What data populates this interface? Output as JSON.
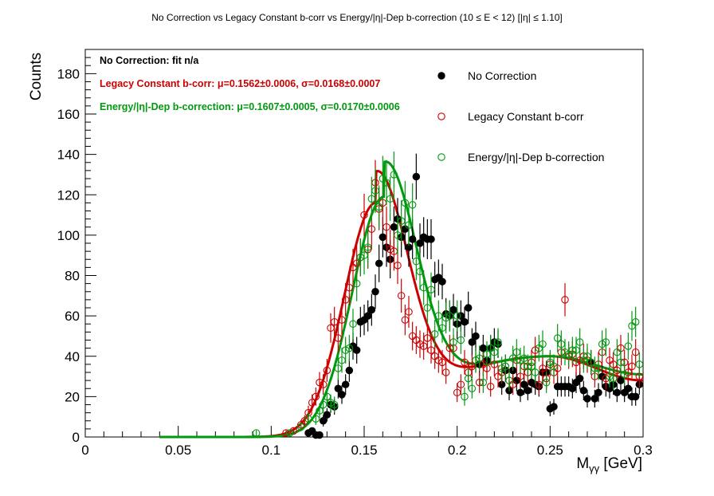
{
  "chart_data": {
    "type": "scatter",
    "title": "No Correction vs Legacy Constant b-corr vs Energy/|η|-Dep b-correction   (10 ≤ E < 12)   [|η| ≤ 1.10]",
    "xlabel": "Mγγ [GeV]",
    "xlabel_main": "M",
    "xlabel_sub": "γγ",
    "xlabel_unit": " [GeV]",
    "ylabel": "Counts",
    "xlim": [
      0,
      0.3
    ],
    "ylim": [
      0,
      192
    ],
    "xticks": [
      0,
      0.05,
      0.1,
      0.15,
      0.2,
      0.25,
      0.3
    ],
    "xtick_labels": [
      "0",
      "0.05",
      "0.1",
      "0.15",
      "0.2",
      "0.25",
      "0.3"
    ],
    "yticks": [
      0,
      20,
      40,
      60,
      80,
      100,
      120,
      140,
      160,
      180
    ],
    "ytick_labels": [
      "0",
      "20",
      "40",
      "60",
      "80",
      "100",
      "120",
      "140",
      "160",
      "180"
    ],
    "grid": false,
    "legend_position": "top-right",
    "annotations": [
      {
        "text": "No Correction: fit n/a",
        "color": "#000000"
      },
      {
        "text": "Legacy Constant b-corr: μ=0.1562±0.0006, σ=0.0168±0.0007",
        "color": "#cc0000"
      },
      {
        "text": "Energy/|η|-Dep b-correction: μ=0.1607±0.0005, σ=0.0170±0.0006",
        "color": "#00990f"
      }
    ],
    "series": [
      {
        "name": "No Correction",
        "color": "#000000",
        "marker": "filled-circle",
        "x": [
          0.12,
          0.122,
          0.124,
          0.126,
          0.128,
          0.13,
          0.132,
          0.134,
          0.136,
          0.138,
          0.14,
          0.142,
          0.144,
          0.146,
          0.148,
          0.15,
          0.152,
          0.154,
          0.156,
          0.158,
          0.16,
          0.162,
          0.164,
          0.166,
          0.168,
          0.17,
          0.172,
          0.174,
          0.176,
          0.178,
          0.18,
          0.182,
          0.184,
          0.186,
          0.188,
          0.19,
          0.192,
          0.194,
          0.196,
          0.198,
          0.2,
          0.202,
          0.204,
          0.206,
          0.208,
          0.21,
          0.212,
          0.214,
          0.216,
          0.218,
          0.22,
          0.222,
          0.224,
          0.226,
          0.228,
          0.23,
          0.232,
          0.234,
          0.236,
          0.238,
          0.24,
          0.242,
          0.244,
          0.246,
          0.248,
          0.25,
          0.252,
          0.254,
          0.256,
          0.258,
          0.26,
          0.262,
          0.264,
          0.266,
          0.268,
          0.27,
          0.272,
          0.274,
          0.276,
          0.278,
          0.28,
          0.282,
          0.284,
          0.286,
          0.288,
          0.29,
          0.292,
          0.294,
          0.296,
          0.298
        ],
        "y": [
          2,
          3,
          1,
          1,
          8,
          11,
          16,
          15,
          24,
          21,
          26,
          33,
          45,
          43,
          57,
          58,
          60,
          63,
          72,
          86,
          99,
          94,
          88,
          104,
          108,
          99,
          103,
          94,
          98,
          129,
          96,
          99,
          98,
          98,
          78,
          79,
          77,
          61,
          60,
          63,
          56,
          60,
          57,
          64,
          47,
          50,
          36,
          44,
          38,
          44,
          47,
          46,
          26,
          33,
          23,
          33,
          28,
          22,
          26,
          23,
          27,
          26,
          25,
          32,
          32,
          14,
          15,
          25,
          25,
          25,
          25,
          24,
          27,
          29,
          23,
          19,
          37,
          19,
          22,
          30,
          25,
          24,
          26,
          22,
          28,
          22,
          24,
          20,
          20,
          26
        ],
        "yerr": [
          1.4,
          1.7,
          1,
          1,
          2.8,
          3.3,
          4,
          3.9,
          4.9,
          4.6,
          5.1,
          5.7,
          6.7,
          6.6,
          7.5,
          7.6,
          7.7,
          7.9,
          8.5,
          9.3,
          10,
          9.7,
          9.4,
          10.2,
          10.4,
          9.9,
          10.1,
          9.7,
          9.9,
          11.4,
          9.8,
          9.9,
          9.9,
          9.9,
          8.8,
          8.9,
          8.8,
          7.8,
          7.7,
          7.9,
          7.5,
          7.7,
          7.5,
          8,
          6.9,
          7.1,
          6,
          6.6,
          6.2,
          6.6,
          6.9,
          6.8,
          5.1,
          5.7,
          4.8,
          5.7,
          5.3,
          4.7,
          5.1,
          4.8,
          5.2,
          5.1,
          5,
          5.7,
          5.7,
          3.7,
          3.9,
          5,
          5,
          5,
          5,
          4.9,
          5.2,
          5.4,
          4.8,
          4.4,
          6.1,
          4.4,
          4.7,
          5.5,
          5,
          4.9,
          5.1,
          4.7,
          5.3,
          4.7,
          4.9,
          4.5,
          4.5,
          5.1
        ]
      },
      {
        "name": "Legacy Constant b-corr",
        "color": "#cc0000",
        "marker": "open-circle",
        "x": [
          0.108,
          0.112,
          0.116,
          0.118,
          0.12,
          0.122,
          0.124,
          0.126,
          0.128,
          0.13,
          0.132,
          0.134,
          0.136,
          0.138,
          0.14,
          0.142,
          0.144,
          0.146,
          0.148,
          0.15,
          0.152,
          0.154,
          0.156,
          0.158,
          0.16,
          0.162,
          0.164,
          0.166,
          0.168,
          0.17,
          0.172,
          0.174,
          0.176,
          0.178,
          0.18,
          0.182,
          0.184,
          0.186,
          0.188,
          0.19,
          0.192,
          0.194,
          0.196,
          0.198,
          0.2,
          0.202,
          0.204,
          0.206,
          0.208,
          0.21,
          0.212,
          0.214,
          0.216,
          0.218,
          0.22,
          0.222,
          0.224,
          0.226,
          0.228,
          0.23,
          0.232,
          0.234,
          0.236,
          0.238,
          0.24,
          0.242,
          0.244,
          0.246,
          0.248,
          0.25,
          0.252,
          0.254,
          0.256,
          0.258,
          0.26,
          0.262,
          0.264,
          0.266,
          0.268,
          0.27,
          0.272,
          0.274,
          0.276,
          0.278,
          0.28,
          0.282,
          0.284,
          0.286,
          0.288,
          0.29,
          0.292,
          0.294,
          0.296,
          0.298
        ],
        "y": [
          2,
          3,
          6,
          8,
          12,
          17,
          20,
          27,
          26,
          33,
          54,
          57,
          49,
          58,
          68,
          74,
          84,
          86,
          89,
          110,
          93,
          103,
          126,
          113,
          116,
          104,
          93,
          92,
          85,
          70,
          58,
          62,
          50,
          48,
          46,
          45,
          49,
          43,
          40,
          38,
          37,
          32,
          44,
          44,
          22,
          26,
          37,
          32,
          35,
          38,
          27,
          36,
          34,
          25,
          36,
          30,
          32,
          35,
          28,
          26,
          38,
          30,
          35,
          32,
          37,
          43,
          26,
          34,
          29,
          36,
          32,
          34,
          42,
          68,
          40,
          41,
          37,
          38,
          40,
          38,
          37,
          30,
          36,
          42,
          29,
          38,
          36,
          33,
          44,
          37,
          32,
          35,
          42,
          30
        ],
        "yerr": [
          1.4,
          1.7,
          2.4,
          2.8,
          3.5,
          4.1,
          4.5,
          5.2,
          5.1,
          5.7,
          7.3,
          7.5,
          7,
          7.6,
          8.2,
          8.6,
          9.2,
          9.3,
          9.4,
          10.5,
          9.6,
          10.1,
          11.2,
          10.6,
          10.8,
          10.2,
          9.6,
          9.6,
          9.2,
          8.4,
          7.6,
          7.9,
          7.1,
          6.9,
          6.8,
          6.7,
          7,
          6.6,
          6.3,
          6.2,
          6.1,
          5.7,
          6.6,
          6.6,
          4.7,
          5.1,
          6.1,
          5.7,
          5.9,
          6.2,
          5.2,
          6,
          5.8,
          5,
          6,
          5.5,
          5.7,
          5.9,
          5.3,
          5.1,
          6.2,
          5.5,
          5.9,
          5.7,
          6.1,
          6.6,
          5.1,
          5.8,
          5.4,
          6,
          5.7,
          5.8,
          6.5,
          8.2,
          6.3,
          6.4,
          6.1,
          6.2,
          6.3,
          6.2,
          6.1,
          5.5,
          6,
          6.5,
          5.4,
          6.2,
          6,
          5.7,
          6.6,
          6.1,
          5.7,
          5.9,
          6.5,
          5.5
        ]
      },
      {
        "name": "Energy/|η|-Dep b-correction",
        "color": "#00990f",
        "marker": "open-circle",
        "x": [
          0.092,
          0.11,
          0.116,
          0.12,
          0.124,
          0.126,
          0.128,
          0.13,
          0.132,
          0.134,
          0.136,
          0.138,
          0.14,
          0.142,
          0.144,
          0.146,
          0.148,
          0.15,
          0.152,
          0.154,
          0.156,
          0.158,
          0.16,
          0.162,
          0.164,
          0.166,
          0.168,
          0.17,
          0.172,
          0.174,
          0.176,
          0.178,
          0.18,
          0.182,
          0.184,
          0.186,
          0.188,
          0.19,
          0.192,
          0.194,
          0.196,
          0.198,
          0.2,
          0.202,
          0.204,
          0.206,
          0.208,
          0.21,
          0.212,
          0.214,
          0.216,
          0.218,
          0.22,
          0.222,
          0.224,
          0.226,
          0.228,
          0.23,
          0.232,
          0.234,
          0.236,
          0.238,
          0.24,
          0.242,
          0.244,
          0.246,
          0.248,
          0.25,
          0.252,
          0.254,
          0.256,
          0.258,
          0.26,
          0.262,
          0.264,
          0.266,
          0.268,
          0.27,
          0.272,
          0.274,
          0.276,
          0.278,
          0.28,
          0.282,
          0.284,
          0.286,
          0.288,
          0.29,
          0.292,
          0.294,
          0.296,
          0.298
        ],
        "y": [
          2,
          2,
          5,
          9,
          9,
          13,
          16,
          20,
          17,
          16,
          34,
          38,
          43,
          44,
          56,
          76,
          89,
          90,
          94,
          118,
          122,
          114,
          128,
          126,
          118,
          130,
          100,
          107,
          116,
          105,
          115,
          87,
          82,
          74,
          64,
          73,
          51,
          60,
          54,
          59,
          60,
          47,
          60,
          48,
          20,
          29,
          24,
          38,
          39,
          27,
          41,
          44,
          42,
          47,
          34,
          35,
          28,
          39,
          42,
          38,
          39,
          35,
          35,
          32,
          44,
          46,
          27,
          37,
          35,
          49,
          46,
          42,
          41,
          43,
          43,
          47,
          38,
          40,
          37,
          34,
          34,
          46,
          47,
          30,
          29,
          42,
          37,
          31,
          45,
          55,
          57,
          36
        ],
        "yerr": [
          1.4,
          1.4,
          2.2,
          3,
          3,
          3.6,
          4,
          4.5,
          4.1,
          4,
          5.8,
          6.2,
          6.6,
          6.6,
          7.5,
          8.7,
          9.4,
          9.5,
          9.7,
          10.9,
          11,
          10.7,
          11.3,
          11.2,
          10.9,
          11.4,
          10,
          10.3,
          10.8,
          10.2,
          10.7,
          9.3,
          9.1,
          8.6,
          8,
          8.5,
          7.1,
          7.7,
          7.3,
          7.7,
          7.7,
          6.9,
          7.7,
          6.9,
          4.5,
          5.4,
          4.9,
          6.2,
          6.2,
          5.2,
          6.4,
          6.6,
          6.5,
          6.9,
          5.8,
          5.9,
          5.3,
          6.2,
          6.5,
          6.2,
          6.2,
          5.9,
          5.9,
          5.7,
          6.6,
          6.8,
          5.2,
          6.1,
          5.9,
          7,
          6.8,
          6.5,
          6.4,
          6.6,
          6.6,
          6.9,
          6.2,
          6.3,
          6.1,
          5.8,
          5.8,
          6.8,
          6.9,
          5.5,
          5.4,
          6.5,
          6.1,
          5.6,
          6.7,
          7.4,
          7.5,
          6
        ]
      }
    ],
    "fit_curves": [
      {
        "series": "Legacy Constant b-corr",
        "color": "#cc0000",
        "mu": 0.1562,
        "sigma": 0.0168,
        "amplitude": 116,
        "bkg_poly": [
          13,
          1.5,
          40,
          28
        ],
        "bkg_knots_x": [
          0.04,
          0.09,
          0.25,
          0.3
        ],
        "x_range": [
          0.04,
          0.3
        ]
      },
      {
        "series": "Energy/|η|-Dep b-correction",
        "color": "#00990f",
        "mu": 0.1607,
        "sigma": 0.017,
        "amplitude": 119,
        "bkg_poly": [
          23,
          1.5,
          40,
          31
        ],
        "bkg_knots_x": [
          0.04,
          0.09,
          0.25,
          0.3
        ],
        "x_range": [
          0.04,
          0.3
        ]
      }
    ]
  }
}
